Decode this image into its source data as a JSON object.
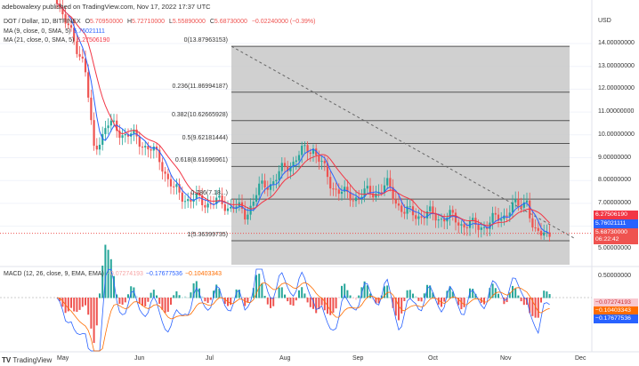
{
  "header": {
    "published": "adebowalexy published on TradingView.com, Nov 17, 2022 17:37 UTC"
  },
  "legend": {
    "symbol": "DOT / Dollar, 1D, BITFINEX",
    "o_label": "O",
    "o": "5.70950000",
    "h_label": "H",
    "h": "5.72710000",
    "l_label": "L",
    "l": "5.55890000",
    "c_label": "C",
    "c": "5.68730000",
    "change": "−0.02240000 (−0.39%)",
    "ma9": "MA (9, close, 0, SMA, 5)",
    "ma9_val": "5.76021111",
    "ma21": "MA (21, close, 0, SMA, 5)",
    "ma21_val": "6.27506190",
    "macd": "MACD (12, 26, close, 9, EMA, EMA)",
    "macd_hist": "−0.07274193",
    "macd_line": "−0.17677536",
    "macd_signal": "−0.10403343"
  },
  "fib_levels": [
    {
      "label": "0(13.87963153)",
      "price": 13.8796
    },
    {
      "label": "0.236(11.86994187)",
      "price": 11.8699
    },
    {
      "label": "0.382(10.62665928)",
      "price": 10.6267
    },
    {
      "label": "0.5(9.62181444)",
      "price": 9.6218
    },
    {
      "label": "0.618(8.61696961)",
      "price": 8.617
    },
    {
      "label": "0.786(7.18...)",
      "price": 7.186
    },
    {
      "label": "1(5.36399735)",
      "price": 5.364
    }
  ],
  "price_axis": {
    "unit": "USD",
    "ticks": [
      "14.00000000",
      "13.00000000",
      "12.00000000",
      "11.00000000",
      "10.00000000",
      "9.00000000",
      "8.00000000",
      "7.00000000",
      "5.00000000"
    ]
  },
  "price_tags": {
    "ma21": "6.27506190",
    "ma9": "5.76021111",
    "close": "5.68730000",
    "countdown": "06:22:42"
  },
  "macd_axis": {
    "ticks": [
      "0.50000000"
    ],
    "tags": [
      "−0.07274193",
      "−0.10403343",
      "−0.17677536"
    ]
  },
  "time_axis": [
    "May",
    "Jun",
    "Jul",
    "Aug",
    "Sep",
    "Oct",
    "Nov",
    "Dec"
  ],
  "footer": {
    "brand": "TradingView"
  },
  "colors": {
    "up": "#26a69a",
    "down": "#ef5350",
    "ma9": "#2962ff",
    "ma21": "#f23645",
    "macd": "#2962ff",
    "signal": "#ff6d00",
    "fib_zone": "#c8c8c8"
  }
}
